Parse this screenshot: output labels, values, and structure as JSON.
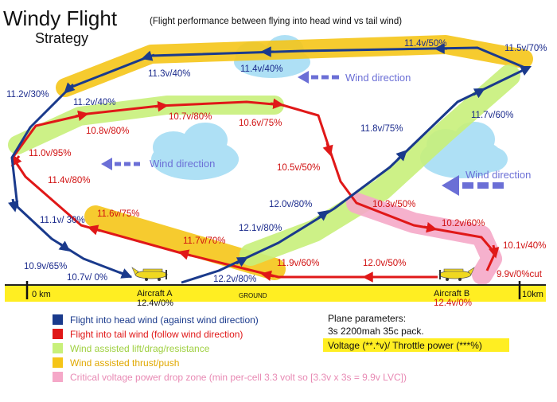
{
  "title": "Windy Flight",
  "subtitle": "Strategy",
  "note": "(Flight performance between flying into head wind vs tail wind)",
  "wind_labels": [
    "Wind direction",
    "Wind direction",
    "Wind direction"
  ],
  "axis": {
    "start": "0 km",
    "end": "10km",
    "ground": "GROUND"
  },
  "aircraft_a": {
    "name": "Aircraft A",
    "reading": "12.4v/0%"
  },
  "aircraft_b": {
    "name": "Aircraft B",
    "reading": "12.4v/0%"
  },
  "blue_labels": [
    "10.7v/ 0%",
    "10.9v/65%",
    "11.1v/ 30%",
    "11.2v/30%",
    "11.2v/40%",
    "11.3v/40%",
    "11.4v/40%",
    "11.4v/50%",
    "11.5v/70%",
    "11.7v/60%",
    "11.8v/75%",
    "12.0v/80%",
    "12.1v/80%",
    "12.2v/80%"
  ],
  "red_labels": [
    "9.9v/0%cut",
    "10.1v/40%",
    "10.2v/60%",
    "10.3v/50%",
    "10.5v/50%",
    "10.6v/75%",
    "10.7v/80%",
    "10.8v/80%",
    "11.0v/95%",
    "11.4v/80%",
    "11.6v/75%",
    "11.7v/70%",
    "11.9v/60%",
    "12.0v/50%"
  ],
  "legend": [
    {
      "text": "Flight into head wind (against wind direction)",
      "color": "#1a3a8c"
    },
    {
      "text": "Flight into tail wind (follow wind direction)",
      "color": "#e01818"
    },
    {
      "text": "Wind assisted lift/drag/resistance",
      "color": "#c8f07a"
    },
    {
      "text": "Wind assisted thrust/push",
      "color": "#f5c518"
    },
    {
      "text": "Critical voltage power drop zone (min per-cell 3.3 volt so [3.3v x 3s = 9.9v LVC])",
      "color": "#f5a8c8"
    }
  ],
  "params": {
    "heading": "Plane parameters:",
    "pack": "3s 2200mah 35c pack.",
    "format": "Voltage (**.*v)/ Throttle power (***%)"
  }
}
